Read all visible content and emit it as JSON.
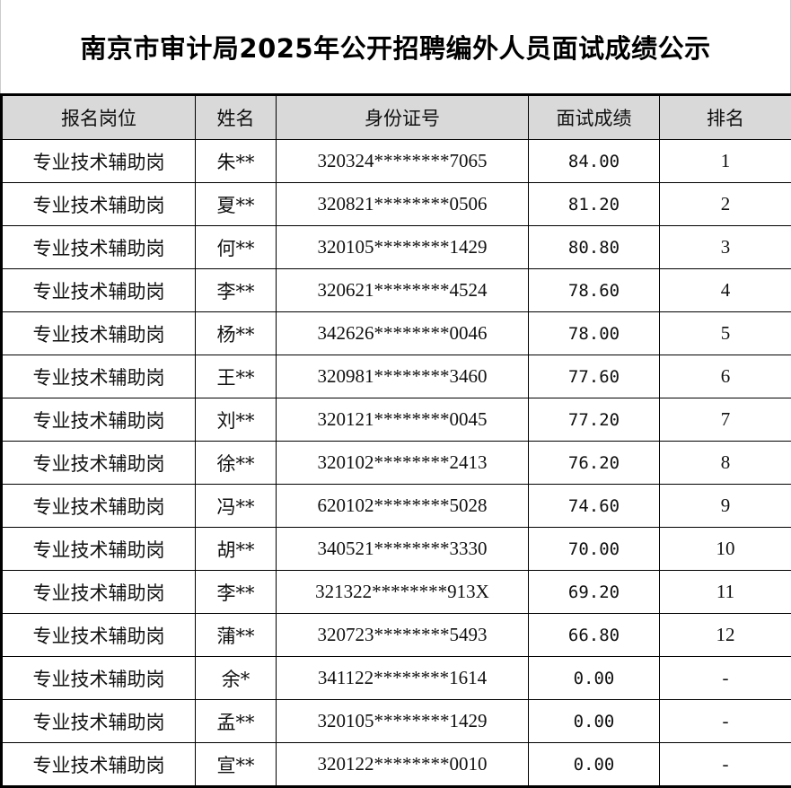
{
  "title": "南京市审计局2025年公开招聘编外人员面试成绩公示",
  "columns": [
    "报名岗位",
    "姓名",
    "身份证号",
    "面试成绩",
    "排名"
  ],
  "rows": [
    [
      "专业技术辅助岗",
      "朱**",
      "320324********7065",
      "84.00",
      "1"
    ],
    [
      "专业技术辅助岗",
      "夏**",
      "320821********0506",
      "81.20",
      "2"
    ],
    [
      "专业技术辅助岗",
      "何**",
      "320105********1429",
      "80.80",
      "3"
    ],
    [
      "专业技术辅助岗",
      "李**",
      "320621********4524",
      "78.60",
      "4"
    ],
    [
      "专业技术辅助岗",
      "杨**",
      "342626********0046",
      "78.00",
      "5"
    ],
    [
      "专业技术辅助岗",
      "王**",
      "320981********3460",
      "77.60",
      "6"
    ],
    [
      "专业技术辅助岗",
      "刘**",
      "320121********0045",
      "77.20",
      "7"
    ],
    [
      "专业技术辅助岗",
      "徐**",
      "320102********2413",
      "76.20",
      "8"
    ],
    [
      "专业技术辅助岗",
      "冯**",
      "620102********5028",
      "74.60",
      "9"
    ],
    [
      "专业技术辅助岗",
      "胡**",
      "340521********3330",
      "70.00",
      "10"
    ],
    [
      "专业技术辅助岗",
      "李**",
      "321322********913X",
      "69.20",
      "11"
    ],
    [
      "专业技术辅助岗",
      "蒲**",
      "320723********5493",
      "66.80",
      "12"
    ],
    [
      "专业技术辅助岗",
      "余*",
      "341122********1614",
      "0.00",
      "-"
    ],
    [
      "专业技术辅助岗",
      "孟**",
      "320105********1429",
      "0.00",
      "-"
    ],
    [
      "专业技术辅助岗",
      "宣**",
      "320122********0010",
      "0.00",
      "-"
    ]
  ]
}
